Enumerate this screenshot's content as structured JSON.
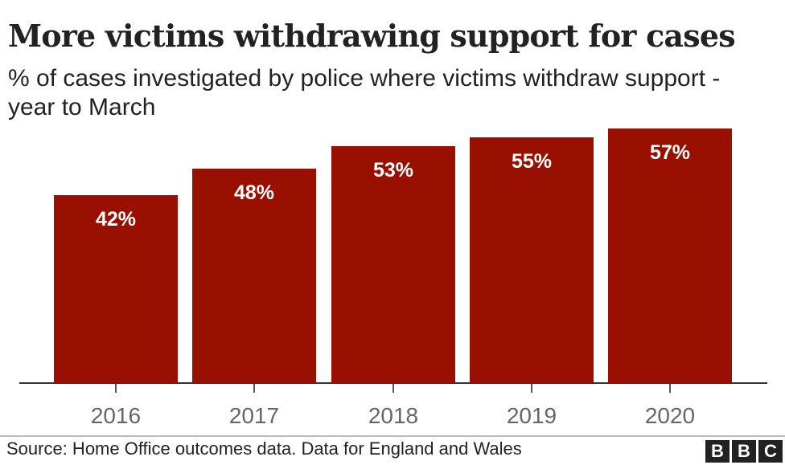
{
  "title": "More victims withdrawing support for cases",
  "subtitle": "% of cases investigated by police where victims withdraw support - year to March",
  "source": "Source: Home Office outcomes data. Data for England and Wales",
  "logo": [
    "B",
    "B",
    "C"
  ],
  "colors": {
    "bar": "#990f00",
    "axis": "#333333",
    "tick_label": "#666666"
  },
  "chart_data": {
    "type": "bar",
    "title": "More victims withdrawing support for cases",
    "subtitle": "% of cases investigated by police where victims withdraw support - year to March",
    "categories": [
      "2016",
      "2017",
      "2018",
      "2019",
      "2020"
    ],
    "values": [
      42,
      48,
      53,
      55,
      57
    ],
    "value_labels": [
      "42%",
      "48%",
      "53%",
      "55%",
      "57%"
    ],
    "xlabel": "",
    "ylabel": "% of cases",
    "ylim": [
      0,
      57
    ],
    "grid": false,
    "legend": null,
    "annotations": [
      "Source: Home Office outcomes data. Data for England and Wales"
    ]
  }
}
